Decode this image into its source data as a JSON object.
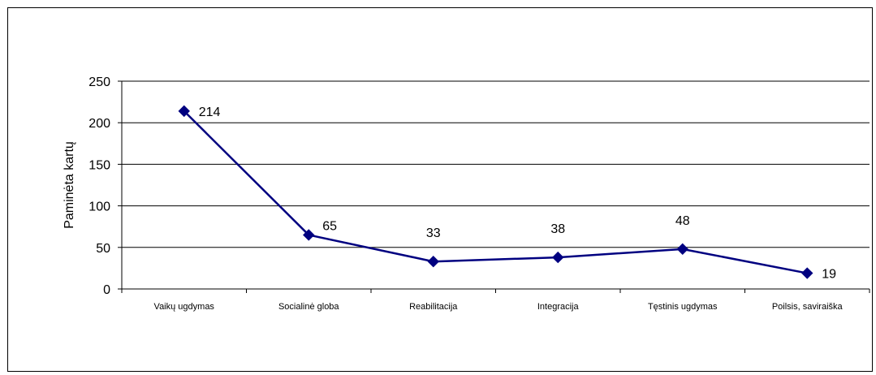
{
  "chart_data": {
    "type": "line",
    "title": "",
    "xlabel": "",
    "ylabel": "Paminėta kartų",
    "categories": [
      "Vaikų ugdymas",
      "Socialinė globa",
      "Reabilitacija",
      "Integracija",
      "Tęstinis ugdymas",
      "Poilsis, saviraiška"
    ],
    "series": [
      {
        "values": [
          214,
          65,
          33,
          38,
          48,
          19
        ]
      }
    ],
    "ylim": [
      0,
      250
    ],
    "yticks": [
      0,
      50,
      100,
      150,
      200,
      250
    ],
    "grid": true,
    "legend": "none",
    "colors": {
      "line": "#000080",
      "marker": "#000080",
      "grid": "#000000"
    }
  }
}
